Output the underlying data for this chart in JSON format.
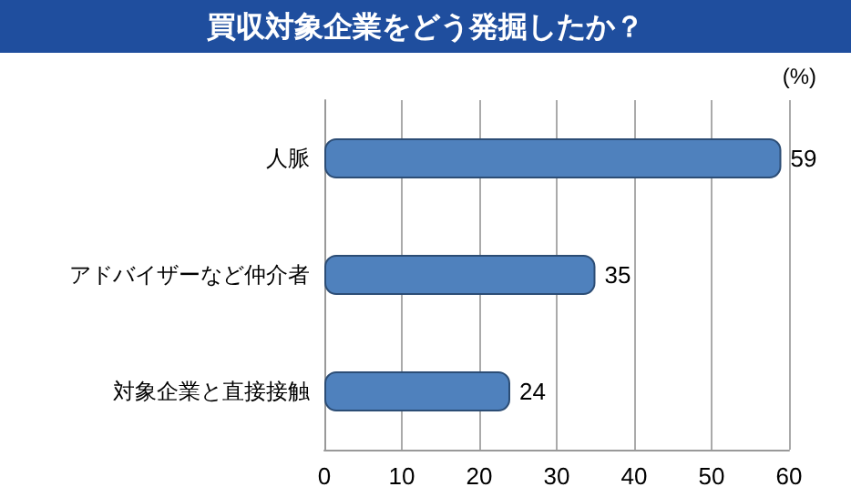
{
  "chart_data": {
    "type": "bar",
    "orientation": "horizontal",
    "title": "買収対象企業をどう発掘したか？",
    "xlabel": "(%)",
    "categories": [
      "人脈",
      "アドバイザーなど仲介者",
      "対象企業と直接接触"
    ],
    "values": [
      59,
      35,
      24
    ],
    "color": "#4f81bd",
    "xlim": [
      0,
      60
    ],
    "xticks": [
      0,
      10,
      20,
      30,
      40,
      50,
      60
    ],
    "grid": "x",
    "data_labels": true
  }
}
